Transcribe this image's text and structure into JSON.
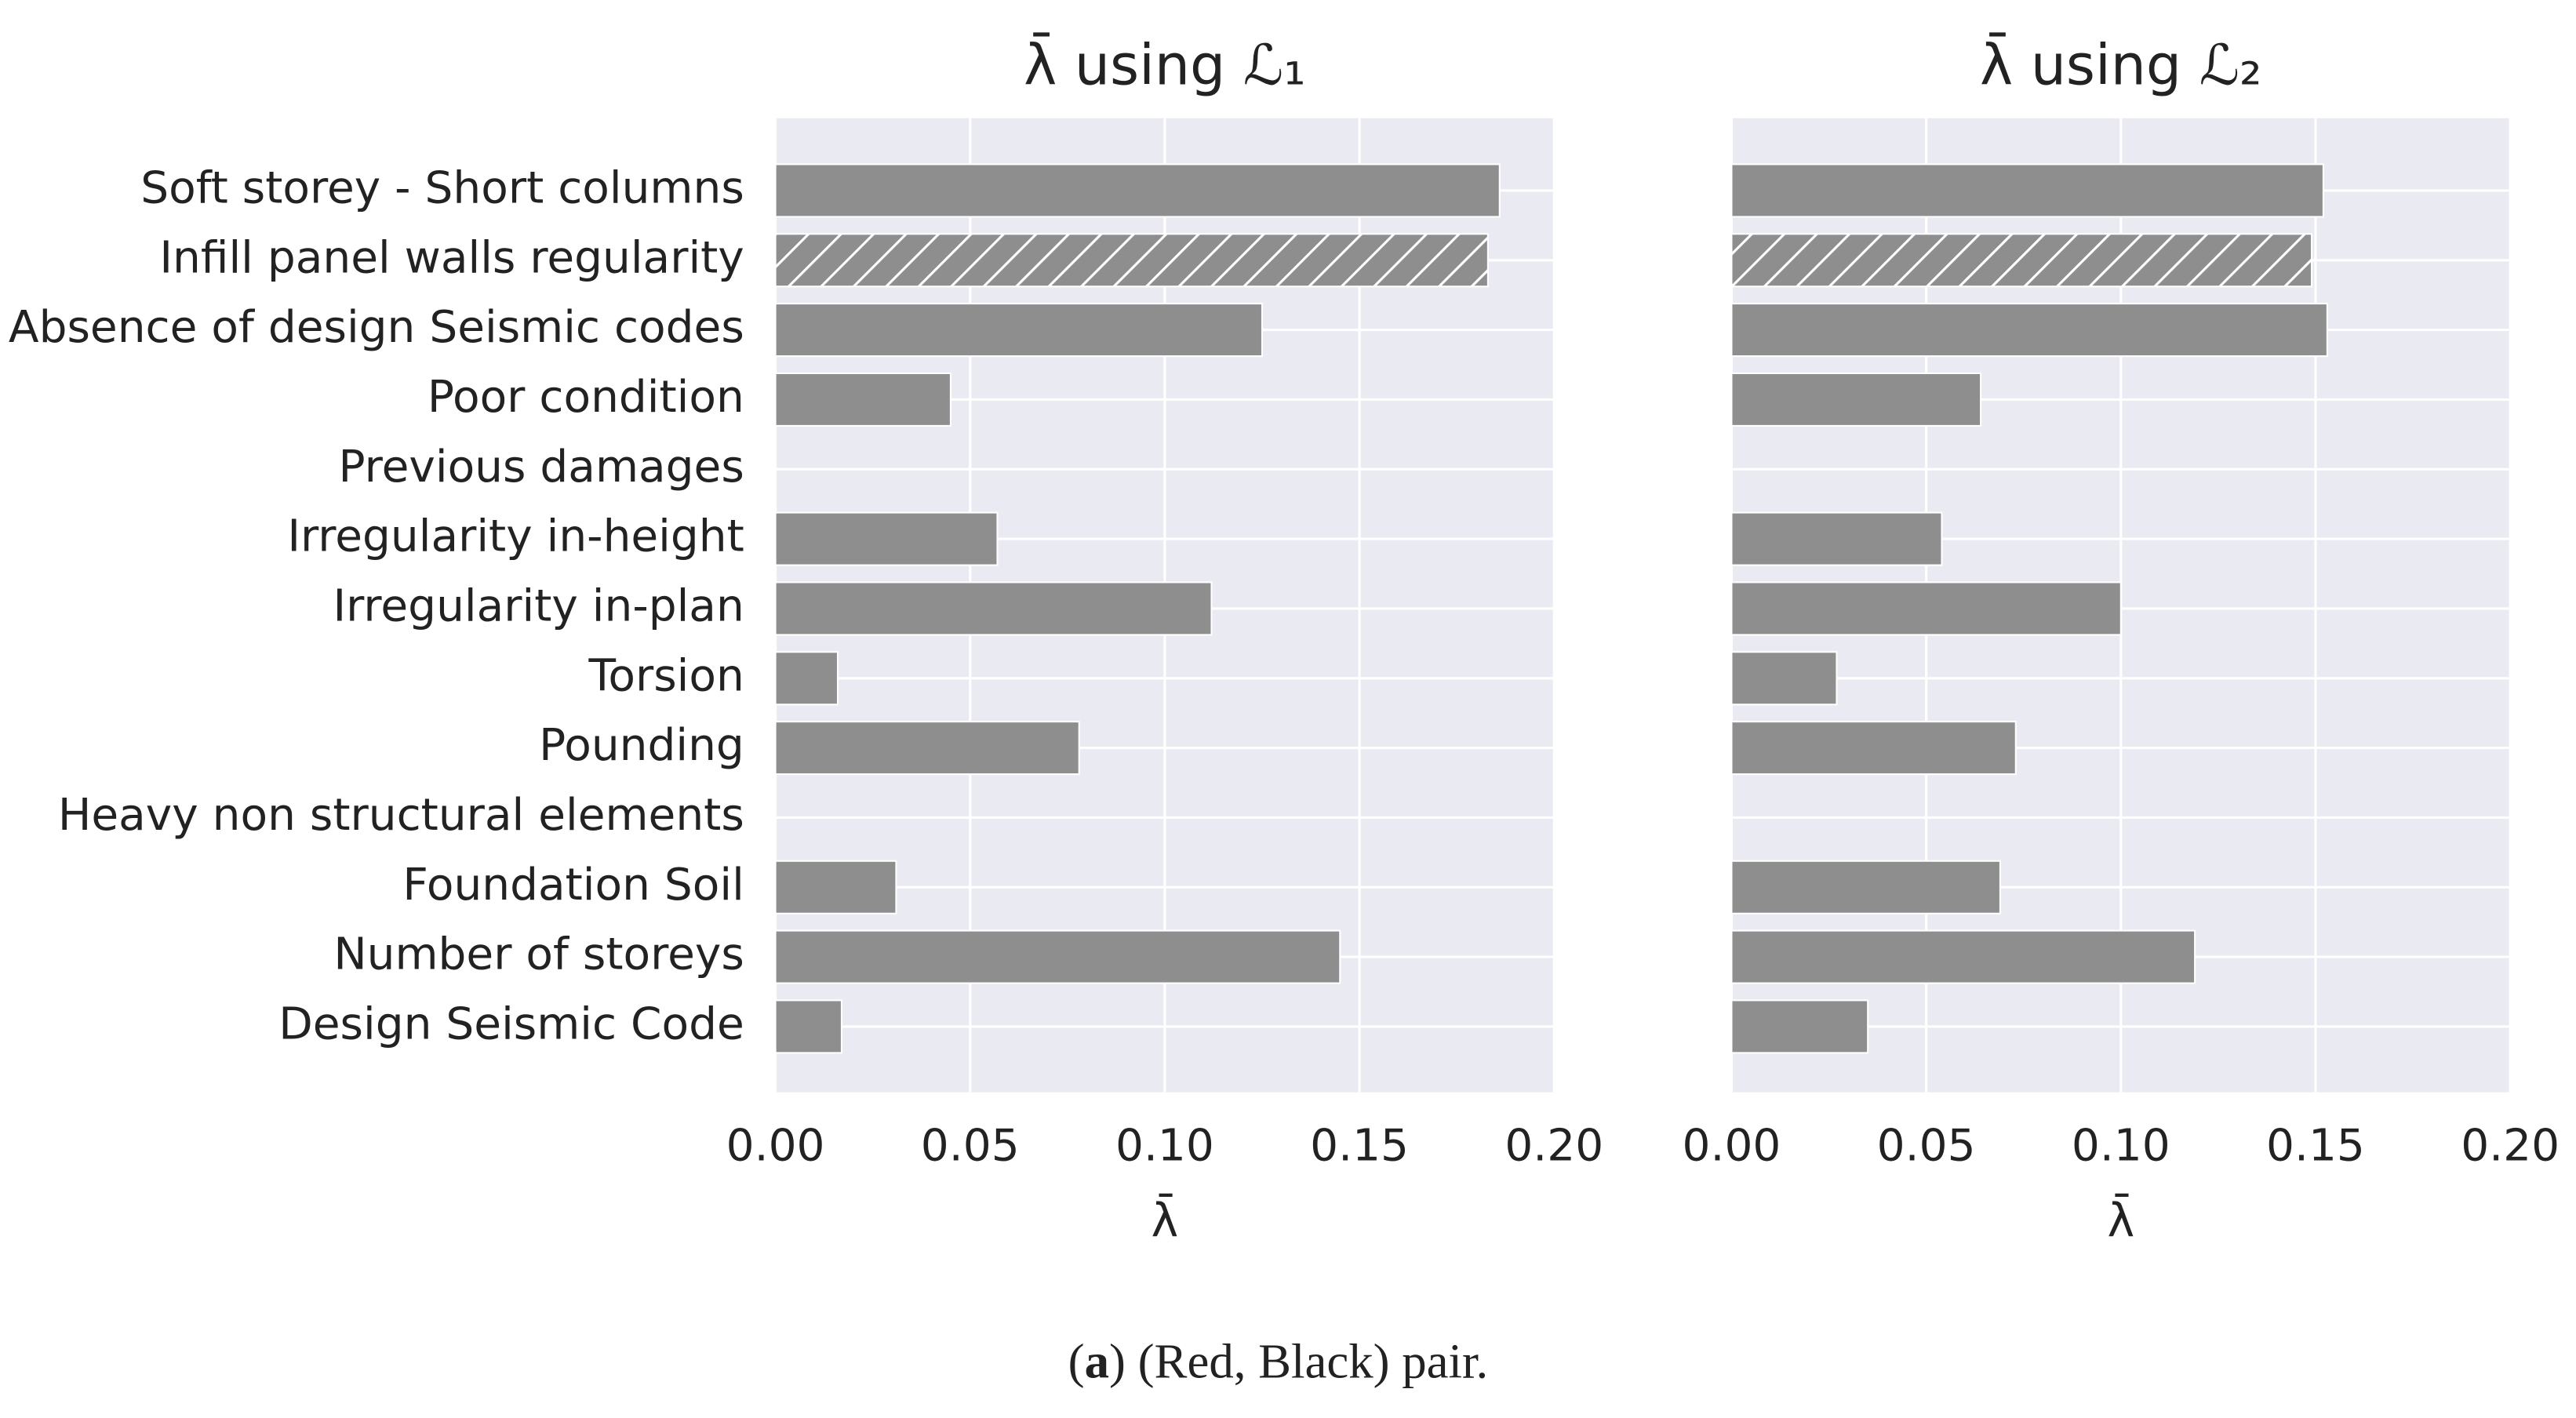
{
  "chart_data": [
    {
      "type": "barh",
      "title": "λ̄ using ℒ₁",
      "x_label": "λ̄",
      "categories": [
        "Soft storey - Short columns",
        "Infill panel walls regularity",
        "Absence of design Seismic codes",
        "Poor condition",
        "Previous damages",
        "Irregularity in-height",
        "Irregularity in-plan",
        "Torsion",
        "Pounding",
        "Heavy non structural elements",
        "Foundation Soil",
        "Number of storeys",
        "Design Seismic Code"
      ],
      "values": [
        0.186,
        0.183,
        0.125,
        0.045,
        0,
        0.057,
        0.112,
        0.016,
        0.078,
        0,
        0.031,
        0.145,
        0.017
      ],
      "hatch": [
        false,
        true,
        false,
        false,
        false,
        false,
        false,
        false,
        false,
        false,
        false,
        false,
        false
      ],
      "color": "#8e8e8e",
      "xlim": [
        0,
        0.2
      ],
      "xticks": [
        {
          "value": 0,
          "label": "0.00"
        },
        {
          "value": 0.05,
          "label": "0.05"
        },
        {
          "value": 0.1,
          "label": "0.10"
        },
        {
          "value": 0.15,
          "label": "0.15"
        },
        {
          "value": 0.2,
          "label": "0.20"
        }
      ],
      "grid": true
    },
    {
      "type": "barh",
      "title": "λ̄ using ℒ₂",
      "x_label": "λ̄",
      "values": [
        0.152,
        0.149,
        0.153,
        0.064,
        0,
        0.054,
        0.1,
        0.027,
        0.073,
        0,
        0.069,
        0.119,
        0.035
      ],
      "hatch": [
        false,
        true,
        false,
        false,
        false,
        false,
        false,
        false,
        false,
        false,
        false,
        false,
        false
      ],
      "color": "#8e8e8e",
      "xlim": [
        0,
        0.2
      ],
      "xticks": [
        {
          "value": 0,
          "label": "0.00"
        },
        {
          "value": 0.05,
          "label": "0.05"
        },
        {
          "value": 0.1,
          "label": "0.10"
        },
        {
          "value": 0.15,
          "label": "0.15"
        },
        {
          "value": 0.2,
          "label": "0.20"
        }
      ],
      "grid": true
    }
  ],
  "caption": [
    "(",
    "a",
    ") (Red, Black) pair."
  ]
}
